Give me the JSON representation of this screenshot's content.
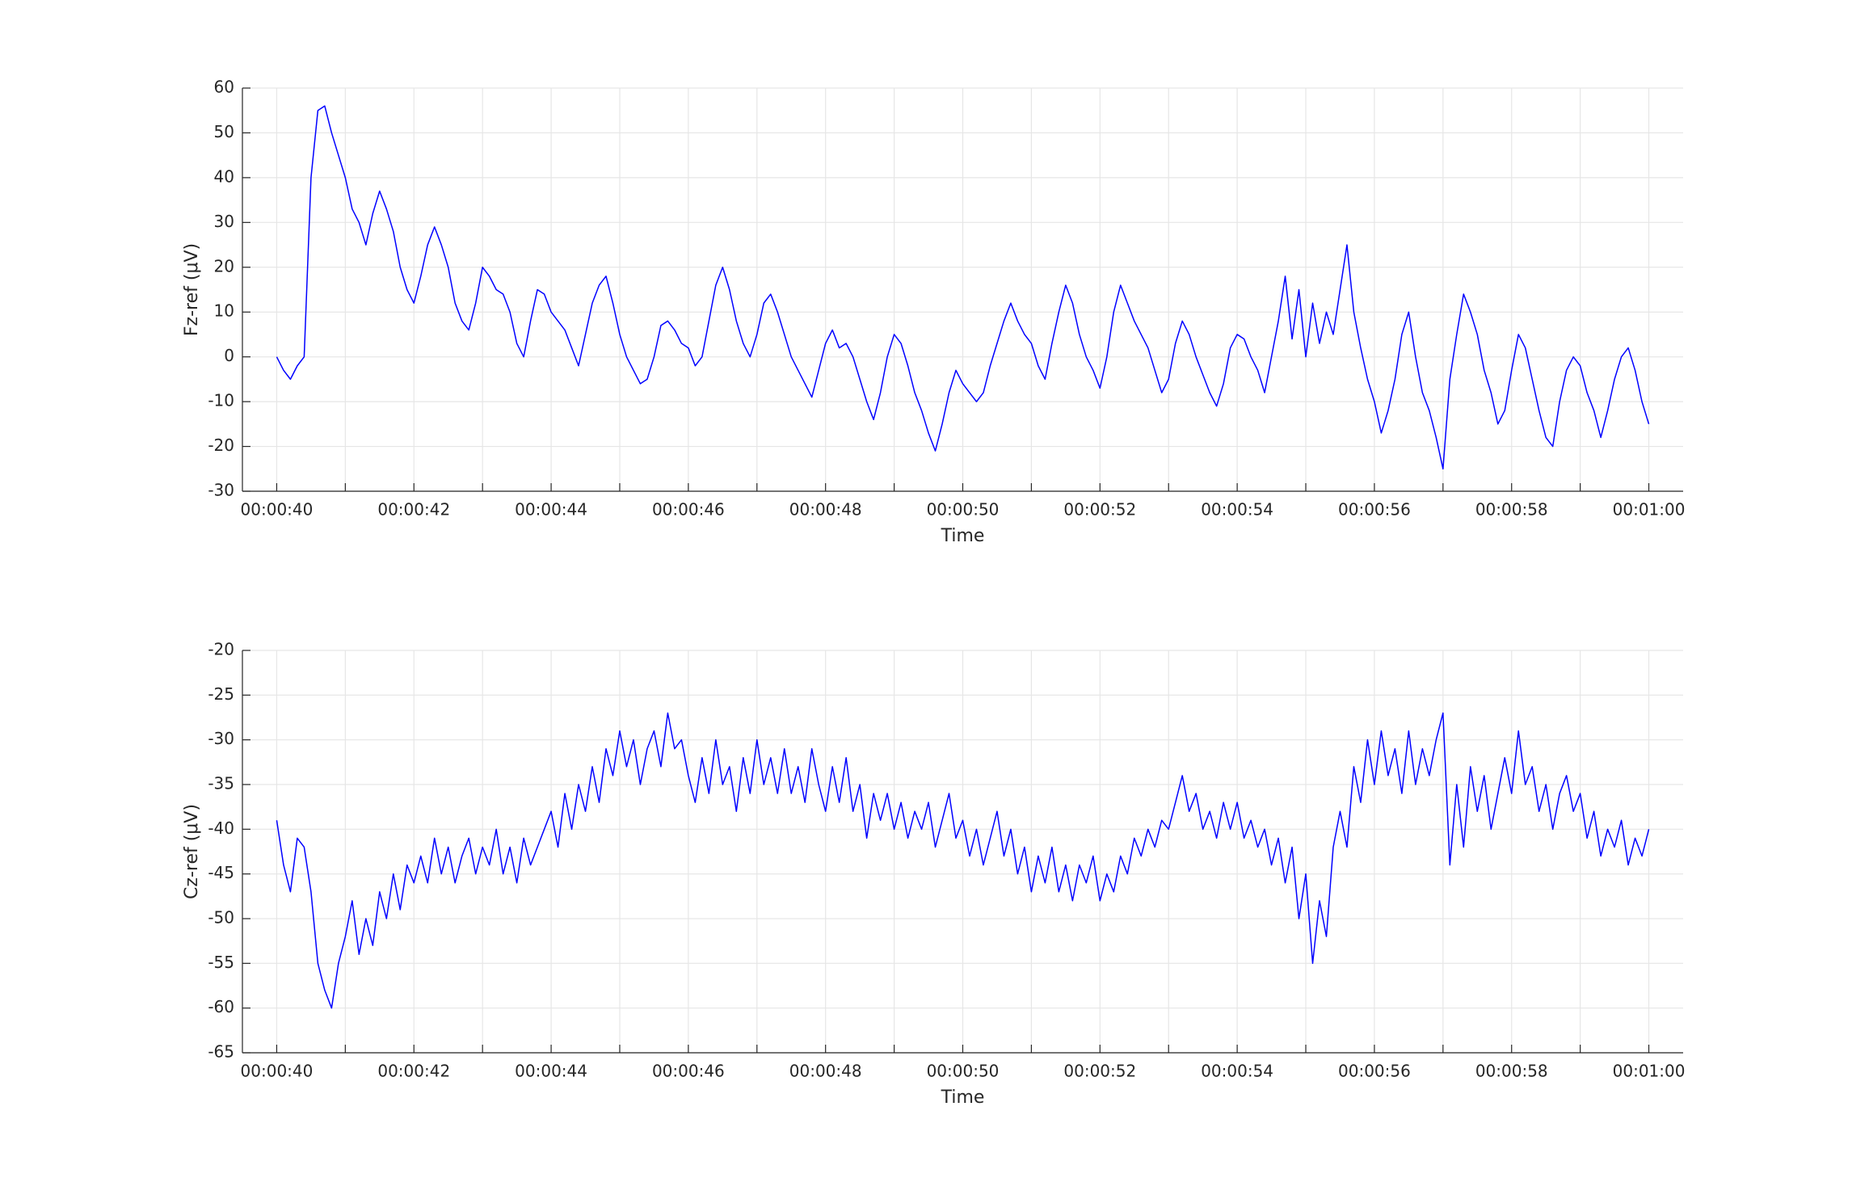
{
  "chart_data": [
    {
      "type": "line",
      "ylabel": "Fz-ref (μV)",
      "xlabel": "Time",
      "color": "#0000ff",
      "grid": true,
      "xlim": [
        39.5,
        60.5
      ],
      "ylim": [
        -30,
        60
      ],
      "xticks": [
        {
          "value": 40,
          "label": "00:00:40"
        },
        {
          "value": 42,
          "label": "00:00:42"
        },
        {
          "value": 44,
          "label": "00:00:44"
        },
        {
          "value": 46,
          "label": "00:00:46"
        },
        {
          "value": 48,
          "label": "00:00:48"
        },
        {
          "value": 50,
          "label": "00:00:50"
        },
        {
          "value": 52,
          "label": "00:00:52"
        },
        {
          "value": 54,
          "label": "00:00:54"
        },
        {
          "value": 56,
          "label": "00:00:56"
        },
        {
          "value": 58,
          "label": "00:00:58"
        },
        {
          "value": 60,
          "label": "00:01:00"
        }
      ],
      "xminorticks": [
        41,
        43,
        45,
        47,
        49,
        51,
        53,
        55,
        57,
        59
      ],
      "yticks": [
        -30,
        -20,
        -10,
        0,
        10,
        20,
        30,
        40,
        50,
        60
      ],
      "x": [
        40,
        40.1,
        40.2,
        40.3,
        40.4,
        40.5,
        40.6,
        40.7,
        40.8,
        40.9,
        41,
        41.1,
        41.2,
        41.3,
        41.4,
        41.5,
        41.6,
        41.7,
        41.8,
        41.9,
        42,
        42.1,
        42.2,
        42.3,
        42.4,
        42.5,
        42.6,
        42.7,
        42.8,
        42.9,
        43,
        43.1,
        43.2,
        43.3,
        43.4,
        43.5,
        43.6,
        43.7,
        43.8,
        43.9,
        44,
        44.1,
        44.2,
        44.3,
        44.4,
        44.5,
        44.6,
        44.7,
        44.8,
        44.9,
        45,
        45.1,
        45.2,
        45.3,
        45.4,
        45.5,
        45.6,
        45.7,
        45.8,
        45.9,
        46,
        46.1,
        46.2,
        46.3,
        46.4,
        46.5,
        46.6,
        46.7,
        46.8,
        46.9,
        47,
        47.1,
        47.2,
        47.3,
        47.4,
        47.5,
        47.6,
        47.7,
        47.8,
        47.9,
        48,
        48.1,
        48.2,
        48.3,
        48.4,
        48.5,
        48.6,
        48.7,
        48.8,
        48.9,
        49,
        49.1,
        49.2,
        49.3,
        49.4,
        49.5,
        49.6,
        49.7,
        49.8,
        49.9,
        50,
        50.1,
        50.2,
        50.3,
        50.4,
        50.5,
        50.6,
        50.7,
        50.8,
        50.9,
        51,
        51.1,
        51.2,
        51.3,
        51.4,
        51.5,
        51.6,
        51.7,
        51.8,
        51.9,
        52,
        52.1,
        52.2,
        52.3,
        52.4,
        52.5,
        52.6,
        52.7,
        52.8,
        52.9,
        53,
        53.1,
        53.2,
        53.3,
        53.4,
        53.5,
        53.6,
        53.7,
        53.8,
        53.9,
        54,
        54.1,
        54.2,
        54.3,
        54.4,
        54.5,
        54.6,
        54.7,
        54.8,
        54.9,
        55,
        55.1,
        55.2,
        55.3,
        55.4,
        55.5,
        55.6,
        55.7,
        55.8,
        55.9,
        56,
        56.1,
        56.2,
        56.3,
        56.4,
        56.5,
        56.6,
        56.7,
        56.8,
        56.9,
        57,
        57.1,
        57.2,
        57.3,
        57.4,
        57.5,
        57.6,
        57.7,
        57.8,
        57.9,
        58,
        58.1,
        58.2,
        58.3,
        58.4,
        58.5,
        58.6,
        58.7,
        58.8,
        58.9,
        59,
        59.1,
        59.2,
        59.3,
        59.4,
        59.5,
        59.6,
        59.7,
        59.8,
        59.9,
        60
      ],
      "values": [
        0,
        -3,
        -5,
        -2,
        0,
        40,
        55,
        56,
        50,
        45,
        40,
        33,
        30,
        25,
        32,
        37,
        33,
        28,
        20,
        15,
        12,
        18,
        25,
        29,
        25,
        20,
        12,
        8,
        6,
        12,
        20,
        18,
        15,
        14,
        10,
        3,
        0,
        8,
        15,
        14,
        10,
        8,
        6,
        2,
        -2,
        5,
        12,
        16,
        18,
        12,
        5,
        0,
        -3,
        -6,
        -5,
        0,
        7,
        8,
        6,
        3,
        2,
        -2,
        0,
        8,
        16,
        20,
        15,
        8,
        3,
        0,
        5,
        12,
        14,
        10,
        5,
        0,
        -3,
        -6,
        -9,
        -3,
        3,
        6,
        2,
        3,
        0,
        -5,
        -10,
        -14,
        -8,
        0,
        5,
        3,
        -2,
        -8,
        -12,
        -17,
        -21,
        -15,
        -8,
        -3,
        -6,
        -8,
        -10,
        -8,
        -2,
        3,
        8,
        12,
        8,
        5,
        3,
        -2,
        -5,
        3,
        10,
        16,
        12,
        5,
        0,
        -3,
        -7,
        0,
        10,
        16,
        12,
        8,
        5,
        2,
        -3,
        -8,
        -5,
        3,
        8,
        5,
        0,
        -4,
        -8,
        -11,
        -6,
        2,
        5,
        4,
        0,
        -3,
        -8,
        0,
        8,
        18,
        4,
        15,
        0,
        12,
        3,
        10,
        5,
        15,
        25,
        10,
        2,
        -5,
        -10,
        -17,
        -12,
        -5,
        5,
        10,
        0,
        -8,
        -12,
        -18,
        -25,
        -5,
        5,
        14,
        10,
        5,
        -3,
        -8,
        -15,
        -12,
        -3,
        5,
        2,
        -5,
        -12,
        -18,
        -20,
        -10,
        -3,
        0,
        -2,
        -8,
        -12,
        -18,
        -12,
        -5,
        0,
        2,
        -3,
        -10,
        -15
      ]
    },
    {
      "type": "line",
      "ylabel": "Cz-ref (μV)",
      "xlabel": "Time",
      "color": "#0000ff",
      "grid": true,
      "xlim": [
        39.5,
        60.5
      ],
      "ylim": [
        -65,
        -20
      ],
      "xticks": [
        {
          "value": 40,
          "label": "00:00:40"
        },
        {
          "value": 42,
          "label": "00:00:42"
        },
        {
          "value": 44,
          "label": "00:00:44"
        },
        {
          "value": 46,
          "label": "00:00:46"
        },
        {
          "value": 48,
          "label": "00:00:48"
        },
        {
          "value": 50,
          "label": "00:00:50"
        },
        {
          "value": 52,
          "label": "00:00:52"
        },
        {
          "value": 54,
          "label": "00:00:54"
        },
        {
          "value": 56,
          "label": "00:00:56"
        },
        {
          "value": 58,
          "label": "00:00:58"
        },
        {
          "value": 60,
          "label": "00:01:00"
        }
      ],
      "xminorticks": [
        41,
        43,
        45,
        47,
        49,
        51,
        53,
        55,
        57,
        59
      ],
      "yticks": [
        -65,
        -60,
        -55,
        -50,
        -45,
        -40,
        -35,
        -30,
        -25,
        -20
      ],
      "x": [
        40,
        40.1,
        40.2,
        40.3,
        40.4,
        40.5,
        40.6,
        40.7,
        40.8,
        40.9,
        41,
        41.1,
        41.2,
        41.3,
        41.4,
        41.5,
        41.6,
        41.7,
        41.8,
        41.9,
        42,
        42.1,
        42.2,
        42.3,
        42.4,
        42.5,
        42.6,
        42.7,
        42.8,
        42.9,
        43,
        43.1,
        43.2,
        43.3,
        43.4,
        43.5,
        43.6,
        43.7,
        43.8,
        43.9,
        44,
        44.1,
        44.2,
        44.3,
        44.4,
        44.5,
        44.6,
        44.7,
        44.8,
        44.9,
        45,
        45.1,
        45.2,
        45.3,
        45.4,
        45.5,
        45.6,
        45.7,
        45.8,
        45.9,
        46,
        46.1,
        46.2,
        46.3,
        46.4,
        46.5,
        46.6,
        46.7,
        46.8,
        46.9,
        47,
        47.1,
        47.2,
        47.3,
        47.4,
        47.5,
        47.6,
        47.7,
        47.8,
        47.9,
        48,
        48.1,
        48.2,
        48.3,
        48.4,
        48.5,
        48.6,
        48.7,
        48.8,
        48.9,
        49,
        49.1,
        49.2,
        49.3,
        49.4,
        49.5,
        49.6,
        49.7,
        49.8,
        49.9,
        50,
        50.1,
        50.2,
        50.3,
        50.4,
        50.5,
        50.6,
        50.7,
        50.8,
        50.9,
        51,
        51.1,
        51.2,
        51.3,
        51.4,
        51.5,
        51.6,
        51.7,
        51.8,
        51.9,
        52,
        52.1,
        52.2,
        52.3,
        52.4,
        52.5,
        52.6,
        52.7,
        52.8,
        52.9,
        53,
        53.1,
        53.2,
        53.3,
        53.4,
        53.5,
        53.6,
        53.7,
        53.8,
        53.9,
        54,
        54.1,
        54.2,
        54.3,
        54.4,
        54.5,
        54.6,
        54.7,
        54.8,
        54.9,
        55,
        55.1,
        55.2,
        55.3,
        55.4,
        55.5,
        55.6,
        55.7,
        55.8,
        55.9,
        56,
        56.1,
        56.2,
        56.3,
        56.4,
        56.5,
        56.6,
        56.7,
        56.8,
        56.9,
        57,
        57.1,
        57.2,
        57.3,
        57.4,
        57.5,
        57.6,
        57.7,
        57.8,
        57.9,
        58,
        58.1,
        58.2,
        58.3,
        58.4,
        58.5,
        58.6,
        58.7,
        58.8,
        58.9,
        59,
        59.1,
        59.2,
        59.3,
        59.4,
        59.5,
        59.6,
        59.7,
        59.8,
        59.9,
        60
      ],
      "values": [
        -39,
        -44,
        -47,
        -41,
        -42,
        -47,
        -55,
        -58,
        -60,
        -55,
        -52,
        -48,
        -54,
        -50,
        -53,
        -47,
        -50,
        -45,
        -49,
        -44,
        -46,
        -43,
        -46,
        -41,
        -45,
        -42,
        -46,
        -43,
        -41,
        -45,
        -42,
        -44,
        -40,
        -45,
        -42,
        -46,
        -41,
        -44,
        -42,
        -40,
        -38,
        -42,
        -36,
        -40,
        -35,
        -38,
        -33,
        -37,
        -31,
        -34,
        -29,
        -33,
        -30,
        -35,
        -31,
        -29,
        -33,
        -27,
        -31,
        -30,
        -34,
        -37,
        -32,
        -36,
        -30,
        -35,
        -33,
        -38,
        -32,
        -36,
        -30,
        -35,
        -32,
        -36,
        -31,
        -36,
        -33,
        -37,
        -31,
        -35,
        -38,
        -33,
        -37,
        -32,
        -38,
        -35,
        -41,
        -36,
        -39,
        -36,
        -40,
        -37,
        -41,
        -38,
        -40,
        -37,
        -42,
        -39,
        -36,
        -41,
        -39,
        -43,
        -40,
        -44,
        -41,
        -38,
        -43,
        -40,
        -45,
        -42,
        -47,
        -43,
        -46,
        -42,
        -47,
        -44,
        -48,
        -44,
        -46,
        -43,
        -48,
        -45,
        -47,
        -43,
        -45,
        -41,
        -43,
        -40,
        -42,
        -39,
        -40,
        -37,
        -34,
        -38,
        -36,
        -40,
        -38,
        -41,
        -37,
        -40,
        -37,
        -41,
        -39,
        -42,
        -40,
        -44,
        -41,
        -46,
        -42,
        -50,
        -45,
        -55,
        -48,
        -52,
        -42,
        -38,
        -42,
        -33,
        -37,
        -30,
        -35,
        -29,
        -34,
        -31,
        -36,
        -29,
        -35,
        -31,
        -34,
        -30,
        -27,
        -44,
        -35,
        -42,
        -33,
        -38,
        -34,
        -40,
        -36,
        -32,
        -36,
        -29,
        -35,
        -33,
        -38,
        -35,
        -40,
        -36,
        -34,
        -38,
        -36,
        -41,
        -38,
        -43,
        -40,
        -42,
        -39,
        -44,
        -41,
        -43,
        -40
      ]
    }
  ]
}
